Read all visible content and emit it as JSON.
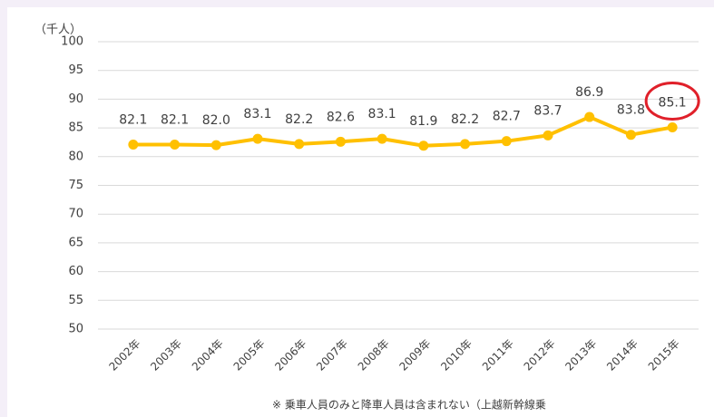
{
  "chart_data": {
    "type": "line",
    "unit_label": "（千人）",
    "footnote": "※ 乗車人員のみと降車人員は含まれない（上越新幹線乗",
    "categories": [
      "2002年",
      "2003年",
      "2004年",
      "2005年",
      "2006年",
      "2007年",
      "2008年",
      "2009年",
      "2010年",
      "2011年",
      "2012年",
      "2013年",
      "2014年",
      "2015年"
    ],
    "series": [
      {
        "name": null,
        "color": "#ffc000",
        "values": [
          82.1,
          82.1,
          82,
          83.1,
          82.2,
          82.6,
          83.1,
          81.9,
          82.2,
          82.7,
          83.7,
          86.9,
          83.8,
          85.1
        ],
        "value_labels": [
          "82.1",
          "82.1",
          "82.0",
          "83.1",
          "82.2",
          "82.6",
          "83.1",
          "81.9",
          "82.2",
          "82.7",
          "83.7",
          "86.9",
          "83.8",
          "85.1"
        ]
      }
    ],
    "ylim": [
      50,
      100
    ],
    "yticks": [
      50,
      55,
      60,
      65,
      70,
      75,
      80,
      85,
      90,
      95,
      100
    ],
    "grid": true,
    "highlight_color": "#e0202a"
  }
}
